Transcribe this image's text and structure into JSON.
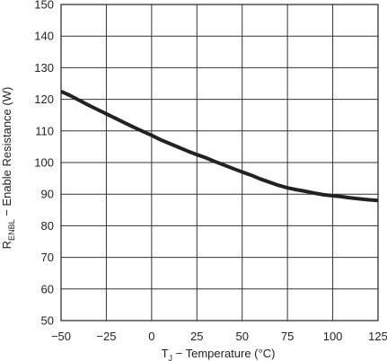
{
  "chart_data": {
    "type": "line",
    "title": "",
    "xlabel": {
      "main": "T",
      "sub": "J",
      "rest": " − Temperature (°C)"
    },
    "ylabel": {
      "main": "R",
      "sub": "ENBL",
      "rest": " − Enable Resistance (W)"
    },
    "xlim": [
      -50,
      125
    ],
    "ylim": [
      50,
      150
    ],
    "x_ticks": [
      -50,
      -25,
      0,
      25,
      50,
      75,
      100,
      125
    ],
    "x_tick_labels": [
      "−50",
      "−25",
      "0",
      "25",
      "50",
      "75",
      "100",
      "125"
    ],
    "y_ticks": [
      50,
      60,
      70,
      80,
      90,
      100,
      110,
      120,
      130,
      140,
      150
    ],
    "y_tick_labels": [
      "50",
      "60",
      "70",
      "80",
      "90",
      "100",
      "110",
      "120",
      "130",
      "140",
      "150"
    ],
    "grid": true,
    "series": [
      {
        "color": "#222222",
        "x": [
          -50,
          -45,
          -40,
          -35,
          -30,
          -25,
          -20,
          -15,
          -10,
          -5,
          0,
          5,
          10,
          15,
          20,
          25,
          30,
          35,
          40,
          45,
          50,
          55,
          60,
          65,
          70,
          75,
          80,
          85,
          90,
          95,
          100,
          105,
          110,
          115,
          120,
          125
        ],
        "y": [
          122.5,
          121.2,
          119.7,
          118.2,
          116.8,
          115.4,
          114.0,
          112.6,
          111.2,
          109.9,
          108.6,
          107.2,
          106.0,
          104.8,
          103.6,
          102.5,
          101.5,
          100.3,
          99.2,
          98.1,
          97.0,
          96.0,
          94.8,
          93.8,
          92.8,
          92.0,
          91.4,
          90.9,
          90.3,
          89.8,
          89.5,
          89.2,
          88.8,
          88.5,
          88.2,
          88.0
        ]
      }
    ]
  }
}
